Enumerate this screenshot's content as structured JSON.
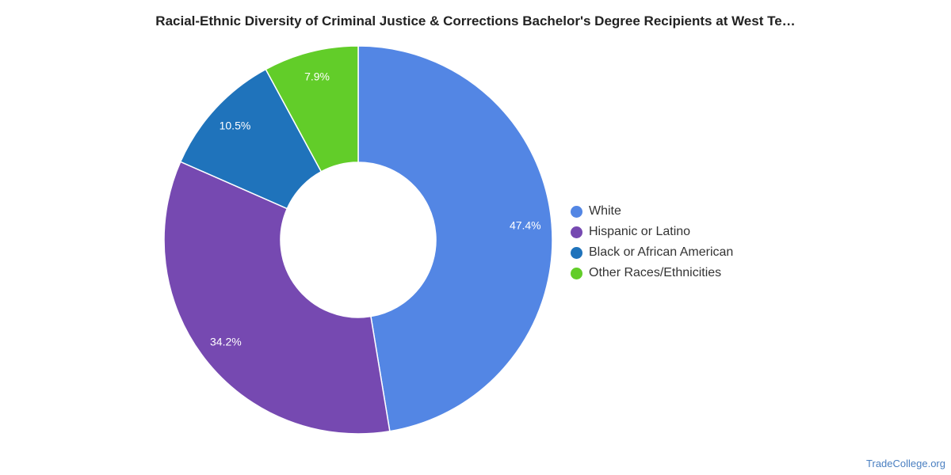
{
  "chart_data": {
    "type": "pie",
    "title": "Racial-Ethnic Diversity of Criminal Justice & Corrections Bachelor's Degree Recipients at West Te…",
    "series": [
      {
        "categories": [
          "White",
          "Hispanic or Latino",
          "Black or African American",
          "Other Races/Ethnicities"
        ],
        "values": [
          47.4,
          34.2,
          10.5,
          7.9
        ],
        "labels": [
          "47.4%",
          "34.2%",
          "10.5%",
          "7.9%"
        ],
        "colors": [
          "#5386e4",
          "#7649b1",
          "#1f73bb",
          "#62cd29"
        ]
      }
    ],
    "legend": "right"
  },
  "watermark": "TradeCollege.org"
}
